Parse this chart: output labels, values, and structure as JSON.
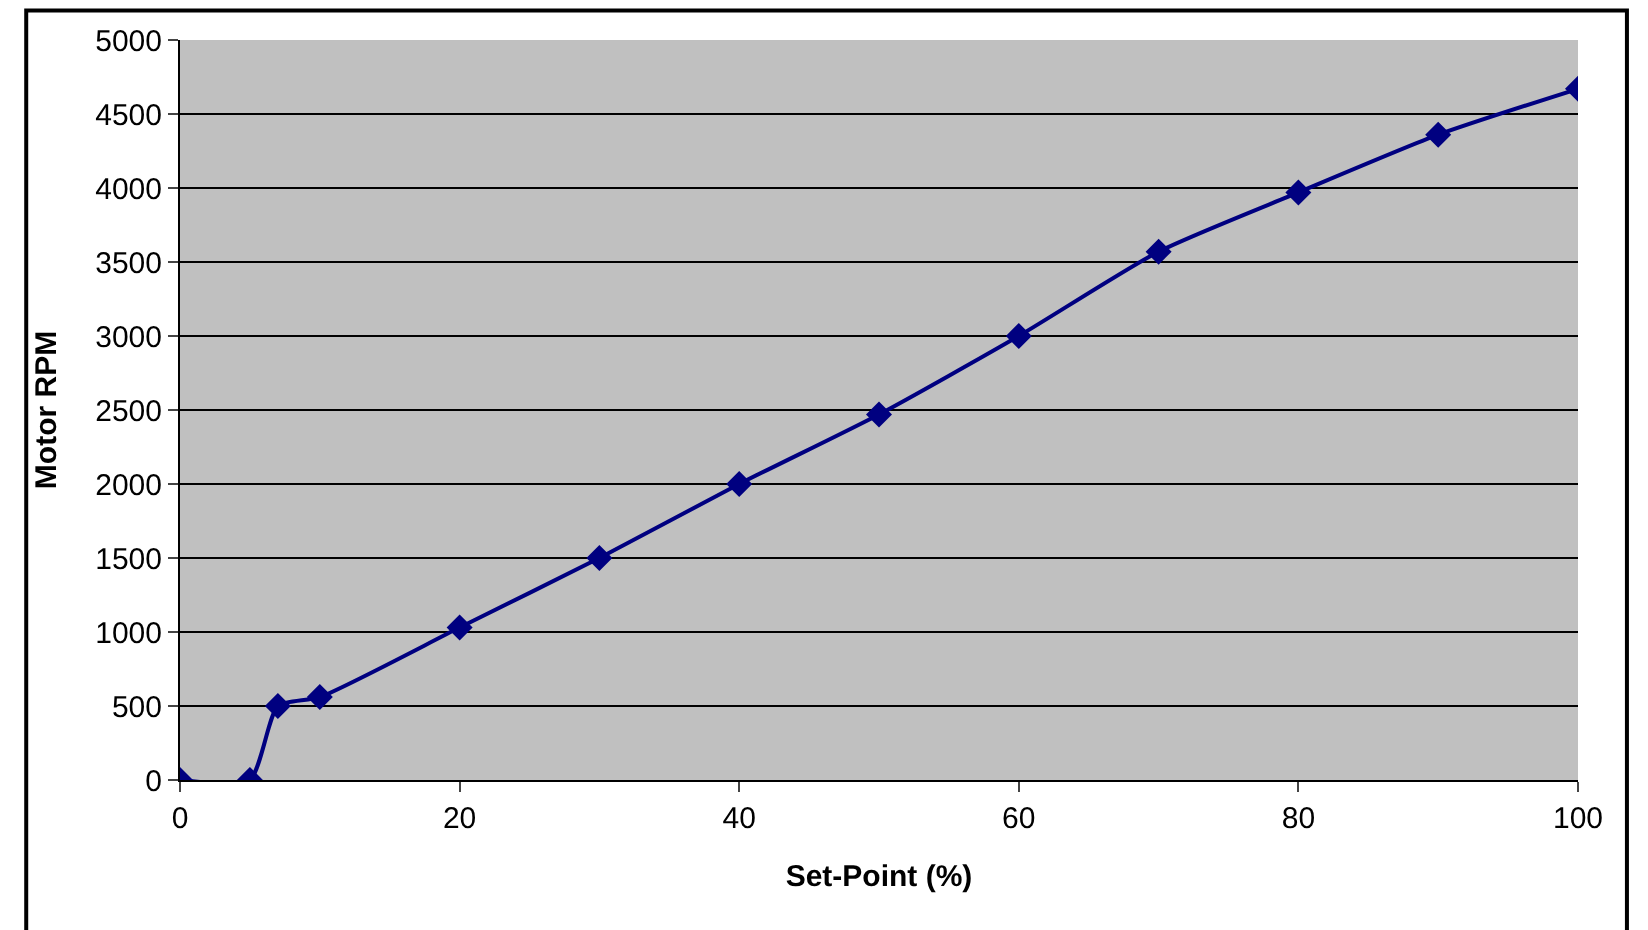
{
  "chart_data": {
    "type": "line",
    "xlabel": "Set-Point (%)",
    "ylabel": "Motor RPM",
    "x": [
      0,
      5,
      7,
      10,
      20,
      30,
      40,
      50,
      60,
      70,
      80,
      90,
      100
    ],
    "series": [
      {
        "color": "#000080",
        "values": [
          0,
          0,
          500,
          560,
          1030,
          1500,
          2000,
          2470,
          3000,
          3570,
          3970,
          4360,
          4670
        ]
      }
    ],
    "xlim": [
      0,
      100
    ],
    "xticks": [
      0,
      20,
      40,
      60,
      80,
      100
    ],
    "ylim": [
      0,
      5000
    ],
    "yticks": [
      0,
      500,
      1000,
      1500,
      2000,
      2500,
      3000,
      3500,
      4000,
      4500,
      5000
    ],
    "grid": "y",
    "marker": "diamond",
    "line_style": "solid",
    "legend": false
  }
}
